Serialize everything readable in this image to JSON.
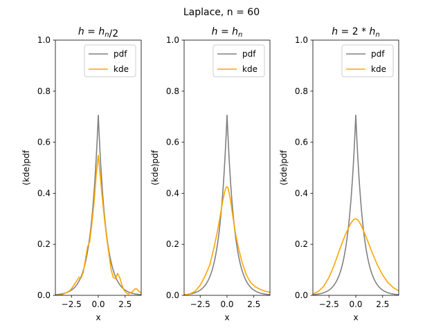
{
  "figure": {
    "suptitle": "Laplace, n = 60"
  },
  "chart_data": [
    {
      "type": "line",
      "title": "h = h_n/2",
      "xlabel": "x",
      "ylabel": "(kde)pdf",
      "xlim": [
        -4,
        4
      ],
      "ylim": [
        0,
        1.0
      ],
      "xticks": [
        -2.5,
        0.0,
        2.5
      ],
      "xtick_labels": [
        "−2.5",
        "0.0",
        "2.5"
      ],
      "yticks": [
        0.0,
        0.2,
        0.4,
        0.6,
        0.8,
        1.0
      ],
      "ytick_labels": [
        "0.0",
        "0.2",
        "0.4",
        "0.6",
        "0.8",
        "1.0"
      ],
      "legend": "upper right",
      "series": [
        {
          "name": "pdf",
          "color": "#808080",
          "laplace": {
            "loc": 0,
            "b": 0.7071,
            "peak": 0.7071
          }
        },
        {
          "name": "kde",
          "color": "#ffa500",
          "x": [
            -4.0,
            -3.5,
            -3.0,
            -2.6,
            -2.2,
            -1.8,
            -1.6,
            -1.4,
            -1.2,
            -1.0,
            -0.8,
            -0.6,
            -0.4,
            -0.2,
            0.0,
            0.2,
            0.4,
            0.6,
            0.8,
            1.0,
            1.2,
            1.4,
            1.6,
            1.8,
            2.0,
            2.2,
            2.4,
            2.6,
            2.8,
            3.0,
            3.2,
            3.4,
            3.6,
            3.8,
            4.0
          ],
          "y": [
            0.0,
            0.0,
            0.01,
            0.02,
            0.045,
            0.07,
            0.068,
            0.09,
            0.14,
            0.19,
            0.21,
            0.28,
            0.36,
            0.47,
            0.55,
            0.46,
            0.37,
            0.29,
            0.22,
            0.16,
            0.1,
            0.07,
            0.065,
            0.085,
            0.07,
            0.04,
            0.02,
            0.01,
            0.005,
            0.01,
            0.015,
            0.025,
            0.025,
            0.015,
            0.01
          ]
        }
      ]
    },
    {
      "type": "line",
      "title": "h = h_n",
      "xlabel": "x",
      "ylabel": "(kde)pdf",
      "xlim": [
        -4,
        4
      ],
      "ylim": [
        0,
        1.0
      ],
      "xticks": [
        -2.5,
        0.0,
        2.5
      ],
      "xtick_labels": [
        "−2.5",
        "0.0",
        "2.5"
      ],
      "yticks": [
        0.0,
        0.2,
        0.4,
        0.6,
        0.8,
        1.0
      ],
      "ytick_labels": [
        "0.0",
        "0.2",
        "0.4",
        "0.6",
        "0.8",
        "1.0"
      ],
      "legend": "upper right",
      "series": [
        {
          "name": "pdf",
          "color": "#808080",
          "laplace": {
            "loc": 0,
            "b": 0.7071,
            "peak": 0.7071
          }
        },
        {
          "name": "kde",
          "color": "#ffa500",
          "x": [
            -4.0,
            -3.5,
            -3.0,
            -2.5,
            -2.0,
            -1.6,
            -1.2,
            -0.9,
            -0.6,
            -0.4,
            -0.2,
            -0.05,
            0.0,
            0.1,
            0.3,
            0.5,
            0.8,
            1.1,
            1.4,
            1.8,
            2.2,
            2.6,
            3.0,
            3.5,
            4.0
          ],
          "y": [
            0.002,
            0.005,
            0.015,
            0.04,
            0.08,
            0.12,
            0.19,
            0.25,
            0.32,
            0.37,
            0.41,
            0.425,
            0.425,
            0.42,
            0.38,
            0.32,
            0.24,
            0.18,
            0.13,
            0.08,
            0.05,
            0.035,
            0.025,
            0.017,
            0.012
          ]
        }
      ]
    },
    {
      "type": "line",
      "title": "h = 2 * h_n",
      "xlabel": "x",
      "ylabel": "(kde)pdf",
      "xlim": [
        -4,
        4
      ],
      "ylim": [
        0,
        1.0
      ],
      "xticks": [
        -2.5,
        0.0,
        2.5
      ],
      "xtick_labels": [
        "−2.5",
        "0.0",
        "2.5"
      ],
      "yticks": [
        0.0,
        0.2,
        0.4,
        0.6,
        0.8,
        1.0
      ],
      "ytick_labels": [
        "0.0",
        "0.2",
        "0.4",
        "0.6",
        "0.8",
        "1.0"
      ],
      "legend": "upper right",
      "series": [
        {
          "name": "pdf",
          "color": "#808080",
          "laplace": {
            "loc": 0,
            "b": 0.7071,
            "peak": 0.7071
          }
        },
        {
          "name": "kde",
          "color": "#ffa500",
          "x": [
            -4.0,
            -3.5,
            -3.0,
            -2.5,
            -2.0,
            -1.5,
            -1.0,
            -0.5,
            -0.2,
            0.0,
            0.2,
            0.5,
            1.0,
            1.5,
            2.0,
            2.5,
            3.0,
            3.5,
            4.0
          ],
          "y": [
            0.005,
            0.015,
            0.035,
            0.07,
            0.12,
            0.18,
            0.235,
            0.28,
            0.297,
            0.3,
            0.295,
            0.275,
            0.225,
            0.17,
            0.12,
            0.08,
            0.05,
            0.03,
            0.018
          ]
        }
      ]
    }
  ]
}
